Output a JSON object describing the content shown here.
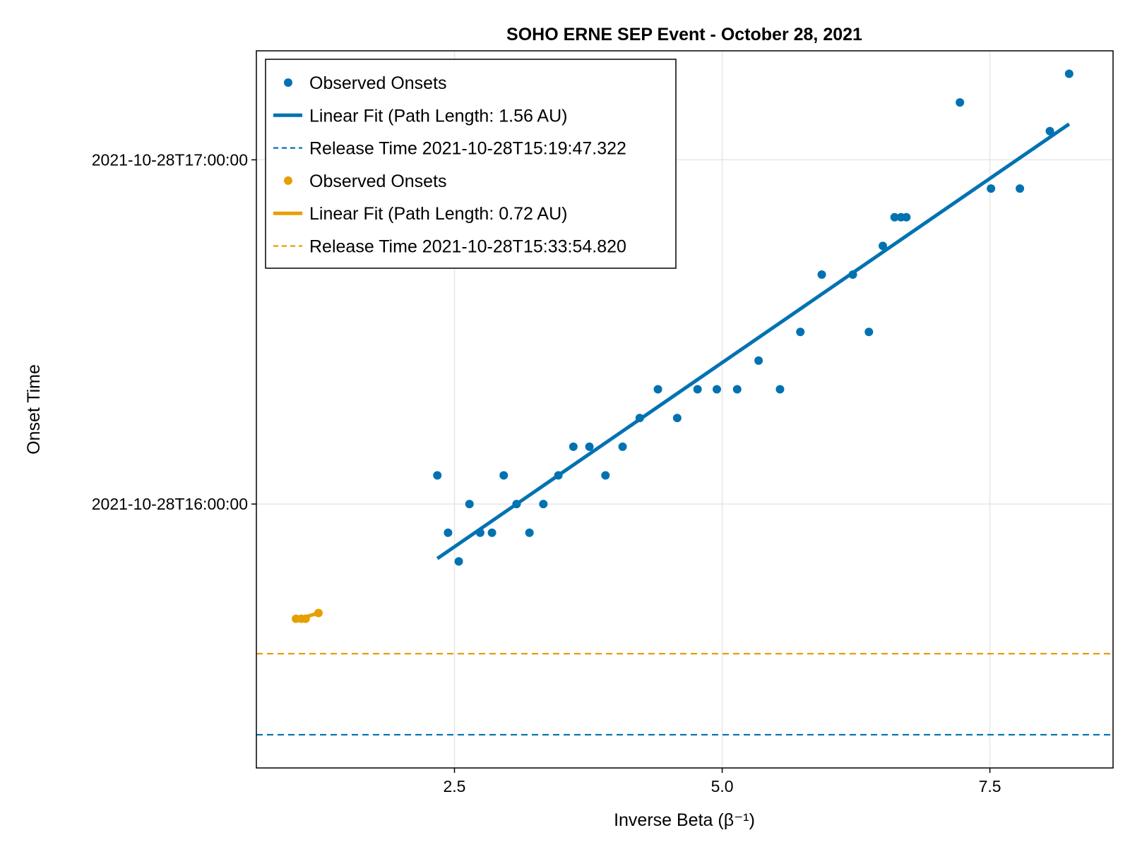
{
  "chart_data": {
    "type": "scatter",
    "title": "SOHO ERNE SEP Event - October 28, 2021",
    "xlabel": "Inverse Beta (β⁻¹)",
    "ylabel": "Onset Time",
    "xlim": [
      0.65,
      8.65
    ],
    "ylim": [
      "2021-10-28T15:14:00",
      "2021-10-28T17:19:00"
    ],
    "x_ticks": [
      {
        "value": 2.5,
        "label": "2.5"
      },
      {
        "value": 5.0,
        "label": "5.0"
      },
      {
        "value": 7.5,
        "label": "7.5"
      }
    ],
    "y_ticks": [
      {
        "value": "2021-10-28T16:00:00",
        "label": "2021-10-28T16:00:00"
      },
      {
        "value": "2021-10-28T17:00:00",
        "label": "2021-10-28T17:00:00"
      }
    ],
    "grid": true,
    "legend": "top-left",
    "colors": {
      "blue": "#0072b2",
      "orange": "#e69f00"
    },
    "legend_entries": [
      {
        "label": "Observed Onsets",
        "kind": "marker",
        "color": "#0072b2"
      },
      {
        "label": "Linear Fit (Path Length: 1.56 AU)",
        "kind": "line",
        "color": "#0072b2"
      },
      {
        "label": "Release Time 2021-10-28T15:19:47.322",
        "kind": "dashed",
        "color": "#0072b2"
      },
      {
        "label": "Observed Onsets",
        "kind": "marker",
        "color": "#e69f00"
      },
      {
        "label": "Linear Fit (Path Length: 0.72 AU)",
        "kind": "line",
        "color": "#e69f00"
      },
      {
        "label": "Release Time 2021-10-28T15:33:54.820",
        "kind": "dashed",
        "color": "#e69f00"
      }
    ],
    "series": [
      {
        "name": "Observed Onsets",
        "kind": "scatter",
        "color": "#0072b2",
        "points": [
          {
            "x": 2.34,
            "y": "2021-10-28T16:05:00"
          },
          {
            "x": 2.44,
            "y": "2021-10-28T15:55:00"
          },
          {
            "x": 2.54,
            "y": "2021-10-28T15:50:00"
          },
          {
            "x": 2.64,
            "y": "2021-10-28T16:00:00"
          },
          {
            "x": 2.74,
            "y": "2021-10-28T15:55:00"
          },
          {
            "x": 2.85,
            "y": "2021-10-28T15:55:00"
          },
          {
            "x": 2.96,
            "y": "2021-10-28T16:05:00"
          },
          {
            "x": 3.08,
            "y": "2021-10-28T16:00:00"
          },
          {
            "x": 3.2,
            "y": "2021-10-28T15:55:00"
          },
          {
            "x": 3.33,
            "y": "2021-10-28T16:00:00"
          },
          {
            "x": 3.47,
            "y": "2021-10-28T16:05:00"
          },
          {
            "x": 3.61,
            "y": "2021-10-28T16:10:00"
          },
          {
            "x": 3.76,
            "y": "2021-10-28T16:10:00"
          },
          {
            "x": 3.91,
            "y": "2021-10-28T16:05:00"
          },
          {
            "x": 4.07,
            "y": "2021-10-28T16:10:00"
          },
          {
            "x": 4.23,
            "y": "2021-10-28T16:15:00"
          },
          {
            "x": 4.4,
            "y": "2021-10-28T16:20:00"
          },
          {
            "x": 4.58,
            "y": "2021-10-28T16:15:00"
          },
          {
            "x": 4.77,
            "y": "2021-10-28T16:20:00"
          },
          {
            "x": 4.95,
            "y": "2021-10-28T16:20:00"
          },
          {
            "x": 5.14,
            "y": "2021-10-28T16:20:00"
          },
          {
            "x": 5.34,
            "y": "2021-10-28T16:25:00"
          },
          {
            "x": 5.54,
            "y": "2021-10-28T16:20:00"
          },
          {
            "x": 5.73,
            "y": "2021-10-28T16:30:00"
          },
          {
            "x": 5.93,
            "y": "2021-10-28T16:40:00"
          },
          {
            "x": 6.22,
            "y": "2021-10-28T16:40:00"
          },
          {
            "x": 6.37,
            "y": "2021-10-28T16:30:00"
          },
          {
            "x": 6.5,
            "y": "2021-10-28T16:45:00"
          },
          {
            "x": 6.61,
            "y": "2021-10-28T16:50:00"
          },
          {
            "x": 6.67,
            "y": "2021-10-28T16:50:00"
          },
          {
            "x": 6.72,
            "y": "2021-10-28T16:50:00"
          },
          {
            "x": 7.22,
            "y": "2021-10-28T17:10:00"
          },
          {
            "x": 7.51,
            "y": "2021-10-28T16:55:00"
          },
          {
            "x": 7.78,
            "y": "2021-10-28T16:55:00"
          },
          {
            "x": 8.06,
            "y": "2021-10-28T17:05:00"
          },
          {
            "x": 8.24,
            "y": "2021-10-28T17:15:00"
          }
        ]
      },
      {
        "name": "Linear Fit (Path Length: 1.56 AU)",
        "kind": "line",
        "color": "#0072b2",
        "points": [
          {
            "x": 2.34,
            "y": "2021-10-28T15:50:30"
          },
          {
            "x": 8.24,
            "y": "2021-10-28T17:06:15"
          }
        ]
      },
      {
        "name": "Release Time 2021-10-28T15:19:47.322",
        "kind": "hline",
        "color": "#0072b2",
        "y": "2021-10-28T15:19:47.322"
      },
      {
        "name": "Observed Onsets",
        "kind": "scatter",
        "color": "#e69f00",
        "points": [
          {
            "x": 1.02,
            "y": "2021-10-28T15:40:00"
          },
          {
            "x": 1.07,
            "y": "2021-10-28T15:40:00"
          },
          {
            "x": 1.11,
            "y": "2021-10-28T15:40:00"
          },
          {
            "x": 1.23,
            "y": "2021-10-28T15:41:00"
          }
        ]
      },
      {
        "name": "Linear Fit (Path Length: 0.72 AU)",
        "kind": "line",
        "color": "#e69f00",
        "points": [
          {
            "x": 1.02,
            "y": "2021-10-28T15:39:50"
          },
          {
            "x": 1.23,
            "y": "2021-10-28T15:41:00"
          }
        ]
      },
      {
        "name": "Release Time 2021-10-28T15:33:54.820",
        "kind": "hline",
        "color": "#e69f00",
        "y": "2021-10-28T15:33:54.820"
      }
    ]
  }
}
